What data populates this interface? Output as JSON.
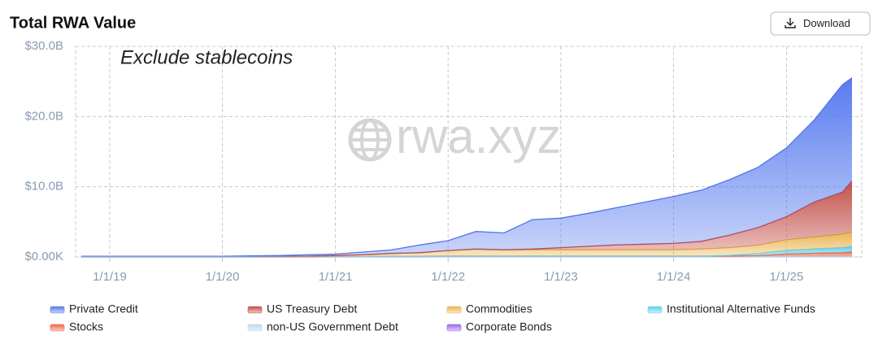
{
  "chart_data": {
    "type": "stacked-area",
    "title": "Total RWA Value",
    "button": "Download",
    "annotation": "Exclude stablecoins",
    "watermark": "rwa.xyz",
    "x": [
      "2018-10-01",
      "2019-01-01",
      "2019-04-01",
      "2019-07-01",
      "2019-10-01",
      "2020-01-01",
      "2020-04-01",
      "2020-07-01",
      "2020-10-01",
      "2021-01-01",
      "2021-04-01",
      "2021-07-01",
      "2021-10-01",
      "2022-01-01",
      "2022-04-01",
      "2022-07-01",
      "2022-10-01",
      "2023-01-01",
      "2023-04-01",
      "2023-07-01",
      "2023-10-01",
      "2024-01-01",
      "2024-04-01",
      "2024-07-01",
      "2024-10-01",
      "2025-01-01",
      "2025-04-01",
      "2025-07-01",
      "2025-08-01"
    ],
    "xlim": [
      "2018-10-01",
      "2025-08-01"
    ],
    "xticks": [
      {
        "value": "2019-01-01",
        "label": "1/1/19"
      },
      {
        "value": "2020-01-01",
        "label": "1/1/20"
      },
      {
        "value": "2021-01-01",
        "label": "1/1/21"
      },
      {
        "value": "2022-01-01",
        "label": "1/1/22"
      },
      {
        "value": "2023-01-01",
        "label": "1/1/23"
      },
      {
        "value": "2024-01-01",
        "label": "1/1/24"
      },
      {
        "value": "2025-01-01",
        "label": "1/1/25"
      }
    ],
    "ylim": [
      0,
      30
    ],
    "yticks": [
      {
        "value": 0,
        "label": "$0.00K"
      },
      {
        "value": 10,
        "label": "$10.0B"
      },
      {
        "value": 20,
        "label": "$20.0B"
      },
      {
        "value": 30,
        "label": "$30.0B"
      }
    ],
    "grid": true,
    "stacked": true,
    "series": [
      {
        "name": "Private Credit",
        "color": "#4f74ee",
        "values": [
          0.08,
          0.08,
          0.08,
          0.08,
          0.08,
          0.07,
          0.1,
          0.12,
          0.2,
          0.2,
          0.4,
          0.5,
          1.1,
          1.4,
          2.5,
          2.4,
          4.2,
          4.2,
          4.7,
          5.3,
          6.0,
          6.7,
          7.3,
          7.9,
          8.6,
          9.8,
          11.7,
          15.3,
          14.7
        ]
      },
      {
        "name": "US Treasury Debt",
        "color": "#c0463f",
        "values": [
          0,
          0,
          0,
          0,
          0,
          0,
          0,
          0,
          0,
          0,
          0,
          0,
          0,
          0,
          0,
          0,
          0.1,
          0.3,
          0.5,
          0.7,
          0.8,
          0.9,
          1.1,
          1.8,
          2.5,
          3.3,
          5.0,
          6.0,
          7.3
        ]
      },
      {
        "name": "Commodities",
        "color": "#e8b24a",
        "values": [
          0.02,
          0.02,
          0.02,
          0.02,
          0.02,
          0.03,
          0.05,
          0.08,
          0.1,
          0.15,
          0.25,
          0.4,
          0.5,
          0.8,
          1.0,
          0.9,
          0.9,
          0.9,
          0.9,
          0.9,
          0.9,
          0.9,
          1.0,
          1.1,
          1.2,
          1.5,
          1.7,
          1.9,
          2.0
        ]
      },
      {
        "name": "Institutional Alternative Funds",
        "color": "#55cdf0",
        "values": [
          0,
          0,
          0,
          0,
          0,
          0,
          0,
          0,
          0,
          0,
          0,
          0,
          0,
          0,
          0,
          0,
          0,
          0,
          0,
          0,
          0,
          0,
          0,
          0.1,
          0.3,
          0.5,
          0.6,
          0.7,
          0.8
        ]
      },
      {
        "name": "Stocks",
        "color": "#f0603f",
        "values": [
          0,
          0,
          0,
          0,
          0,
          0,
          0,
          0,
          0,
          0,
          0,
          0,
          0,
          0,
          0,
          0,
          0,
          0,
          0,
          0,
          0,
          0,
          0,
          0,
          0.05,
          0.3,
          0.4,
          0.5,
          0.6
        ]
      },
      {
        "name": "non-US Government Debt",
        "color": "#b9d6ea",
        "values": [
          0,
          0,
          0,
          0,
          0,
          0,
          0,
          0,
          0,
          0.05,
          0.05,
          0.1,
          0.1,
          0.1,
          0.1,
          0.1,
          0.1,
          0.1,
          0.1,
          0.1,
          0.1,
          0.1,
          0.1,
          0.1,
          0.1,
          0.1,
          0.1,
          0.1,
          0.1
        ]
      },
      {
        "name": "Corporate Bonds",
        "color": "#9b5cf0",
        "values": [
          0,
          0,
          0,
          0,
          0,
          0,
          0,
          0,
          0,
          0,
          0,
          0,
          0,
          0.02,
          0.02,
          0.02,
          0.02,
          0.02,
          0.02,
          0.02,
          0.02,
          0.02,
          0.02,
          0.02,
          0.03,
          0.03,
          0.03,
          0.03,
          0.03
        ]
      }
    ]
  }
}
